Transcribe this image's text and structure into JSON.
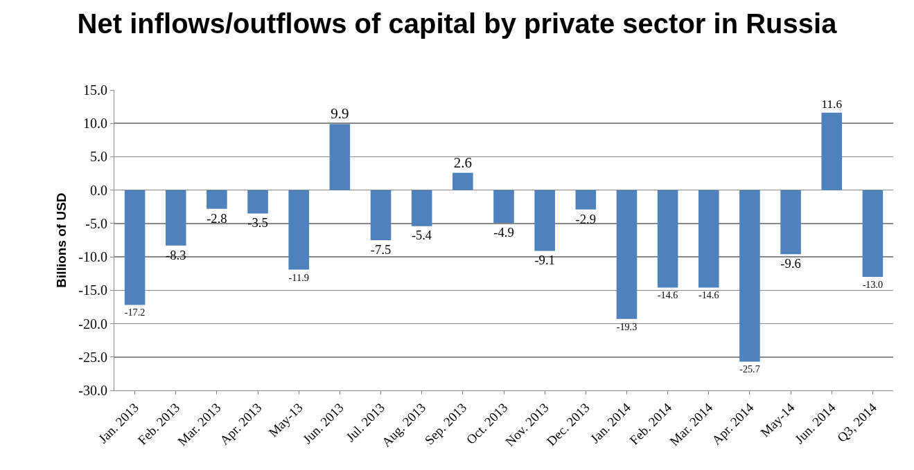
{
  "chart_data": {
    "type": "bar",
    "title": "Net inflows/outflows of capital by private sector in Russia",
    "ylabel": "Billions of USD",
    "categories": [
      "Jan. 2013",
      "Feb. 2013",
      "Mar. 2013",
      "Apr. 2013",
      "May-13",
      "Jun. 2013",
      "Jul. 2013",
      "Aug. 2013",
      "Sep. 2013",
      "Oct. 2013",
      "Nov. 2013",
      "Dec. 2013",
      "Jan. 2014",
      "Feb. 2014",
      "Mar. 2014",
      "Apr. 2014",
      "May-14",
      "Jun. 2014",
      "Q3, 2014"
    ],
    "values": [
      -17.2,
      -8.3,
      -2.8,
      -3.5,
      -11.9,
      9.9,
      -7.5,
      -5.4,
      2.6,
      -4.9,
      -9.1,
      -2.9,
      -19.3,
      -14.6,
      -14.6,
      -25.7,
      -9.6,
      11.6,
      -13.0
    ],
    "value_labels": [
      "-17.2",
      "-8.3",
      "-2.8",
      "-3.5",
      "-11.9",
      "9.9",
      "-7.5",
      "-5.4",
      "2.6",
      "-4.9",
      "-9.1",
      "-2.9",
      "-19.3",
      "-14.6",
      "-14.6",
      "-25.7",
      "-9.6",
      "11.6",
      "-13.0"
    ],
    "color": "#4f81bd",
    "ylim": [
      -30,
      15
    ],
    "yticks": [
      {
        "value": -30,
        "label": "-30.0"
      },
      {
        "value": -25,
        "label": "-25.0"
      },
      {
        "value": -20,
        "label": "-20.0"
      },
      {
        "value": -15,
        "label": "-15.0"
      },
      {
        "value": -10,
        "label": "-10.0"
      },
      {
        "value": -5,
        "label": "-5.0"
      },
      {
        "value": 0,
        "label": "0.0"
      },
      {
        "value": 5,
        "label": "5.0"
      },
      {
        "value": 10,
        "label": "10.0"
      },
      {
        "value": 15,
        "label": "15.0"
      }
    ],
    "grid": "y"
  }
}
